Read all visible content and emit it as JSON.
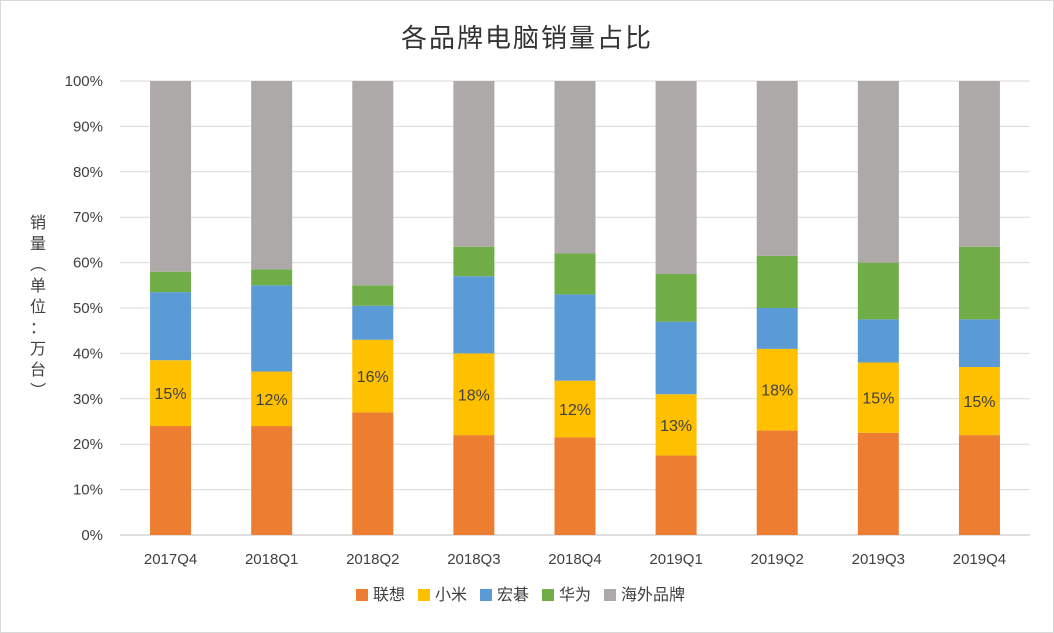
{
  "chart_data": {
    "type": "bar",
    "stacked": true,
    "title": "各品牌电脑销量占比",
    "ylabel": "销量（单位：万台）",
    "xlabel": "",
    "ylim": [
      0,
      1
    ],
    "y_ticks": [
      "0%",
      "10%",
      "20%",
      "30%",
      "40%",
      "50%",
      "60%",
      "70%",
      "80%",
      "90%",
      "100%"
    ],
    "categories": [
      "2017Q4",
      "2018Q1",
      "2018Q2",
      "2018Q3",
      "2018Q4",
      "2019Q1",
      "2019Q2",
      "2019Q3",
      "2019Q4"
    ],
    "series": [
      {
        "name": "联想",
        "color": "#ED7D31",
        "values": [
          0.24,
          0.24,
          0.27,
          0.22,
          0.215,
          0.175,
          0.23,
          0.225,
          0.22
        ]
      },
      {
        "name": "小米",
        "color": "#FFC000",
        "values": [
          0.145,
          0.12,
          0.16,
          0.18,
          0.125,
          0.135,
          0.18,
          0.155,
          0.15
        ],
        "labels": [
          "15%",
          "12%",
          "16%",
          "18%",
          "12%",
          "13%",
          "18%",
          "15%",
          "15%"
        ]
      },
      {
        "name": "宏碁",
        "color": "#5B9BD5",
        "values": [
          0.15,
          0.19,
          0.075,
          0.17,
          0.19,
          0.16,
          0.09,
          0.095,
          0.105
        ]
      },
      {
        "name": "华为",
        "color": "#70AD47",
        "values": [
          0.045,
          0.035,
          0.045,
          0.065,
          0.09,
          0.105,
          0.115,
          0.125,
          0.16
        ]
      },
      {
        "name": "海外品牌",
        "color": "#ADA9A9",
        "values": [
          0.42,
          0.415,
          0.45,
          0.365,
          0.38,
          0.425,
          0.385,
          0.4,
          0.365
        ]
      }
    ],
    "grid": true,
    "legend_position": "bottom"
  }
}
